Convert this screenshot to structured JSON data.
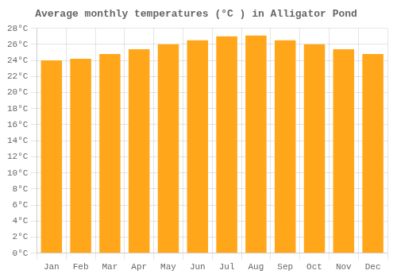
{
  "chart_data": {
    "type": "bar",
    "title": "Average monthly temperatures (°C ) in Alligator Pond",
    "categories": [
      "Jan",
      "Feb",
      "Mar",
      "Apr",
      "May",
      "Jun",
      "Jul",
      "Aug",
      "Sep",
      "Oct",
      "Nov",
      "Dec"
    ],
    "values": [
      24.0,
      24.2,
      24.8,
      25.4,
      26.0,
      26.5,
      27.0,
      27.1,
      26.5,
      26.0,
      25.4,
      24.8
    ],
    "color": "#ffa61a",
    "ylim": [
      0,
      28
    ],
    "yticks": [
      {
        "value": 0,
        "label": "0°C"
      },
      {
        "value": 2,
        "label": "2°C"
      },
      {
        "value": 4,
        "label": "4°C"
      },
      {
        "value": 6,
        "label": "6°C"
      },
      {
        "value": 8,
        "label": "8°C"
      },
      {
        "value": 10,
        "label": "10°C"
      },
      {
        "value": 12,
        "label": "12°C"
      },
      {
        "value": 14,
        "label": "14°C"
      },
      {
        "value": 16,
        "label": "16°C"
      },
      {
        "value": 18,
        "label": "18°C"
      },
      {
        "value": 20,
        "label": "20°C"
      },
      {
        "value": 22,
        "label": "22°C"
      },
      {
        "value": 24,
        "label": "24°C"
      },
      {
        "value": 26,
        "label": "26°C"
      },
      {
        "value": 28,
        "label": "28°C"
      }
    ],
    "grid": true
  }
}
